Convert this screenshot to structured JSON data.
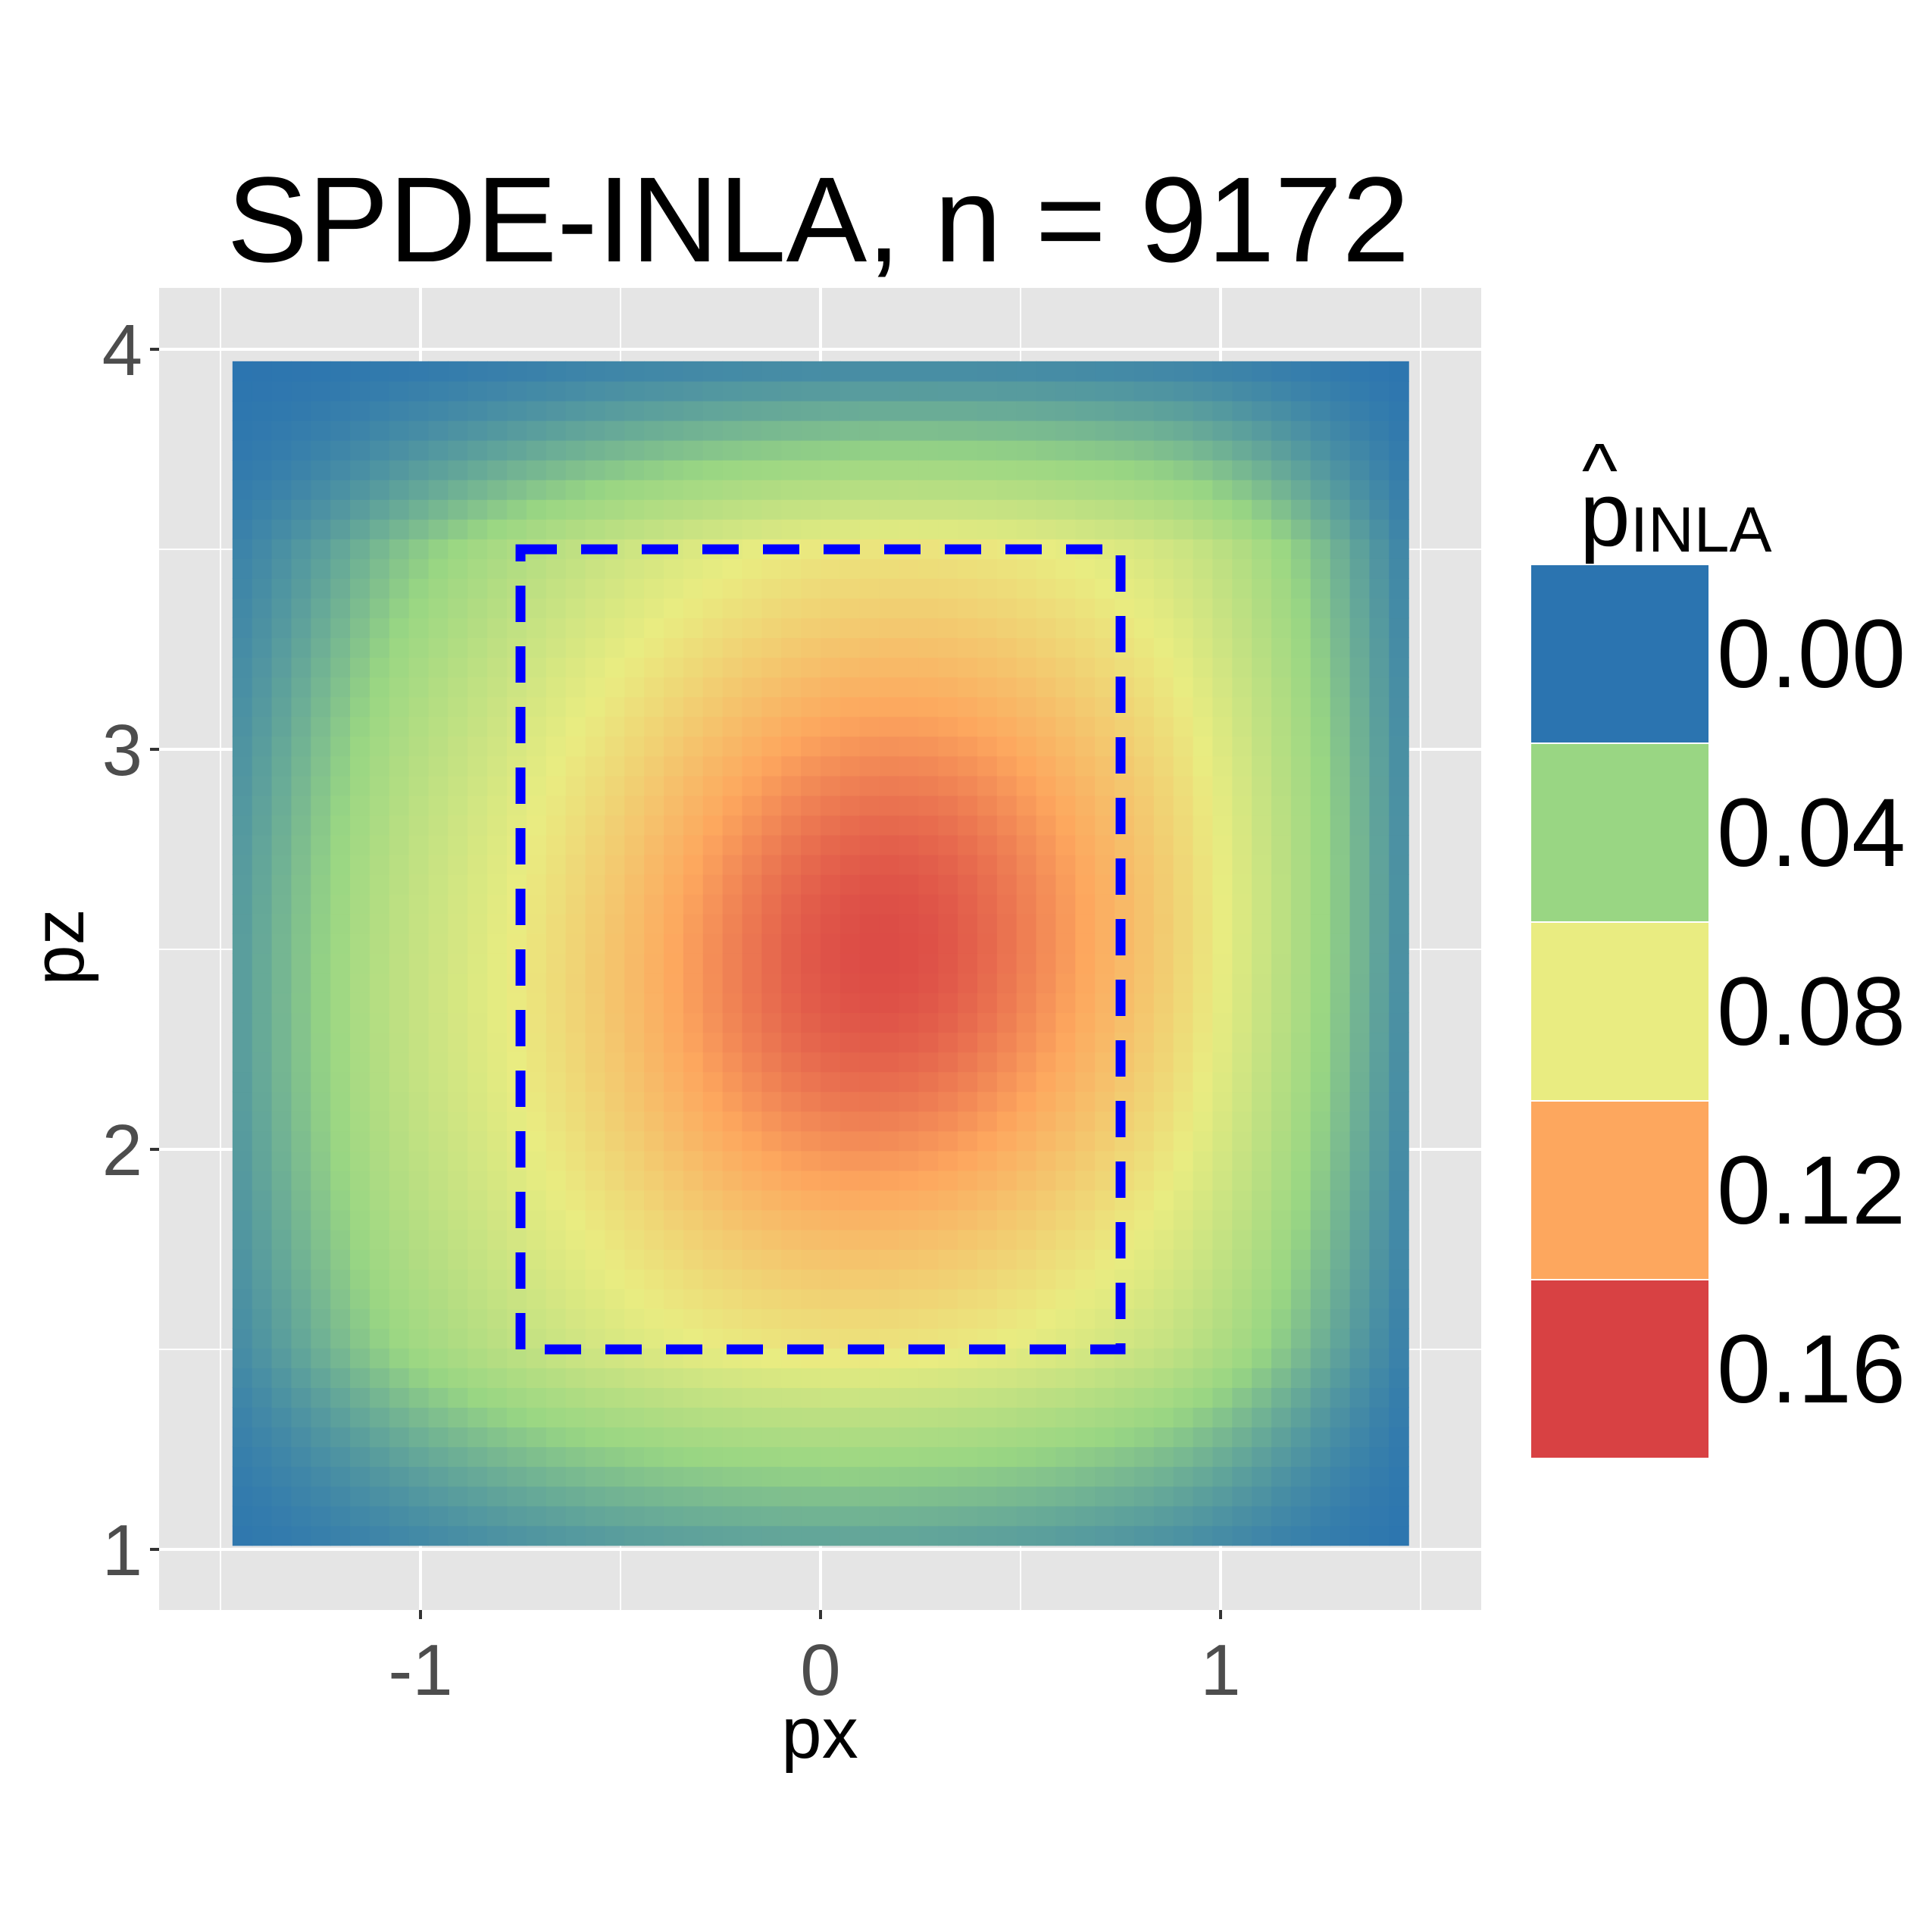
{
  "chart_data": {
    "type": "heatmap",
    "title": "SPDE-INLA, n = 9172",
    "xlabel": "px",
    "ylabel": "pz",
    "x_ticks": [
      -1,
      0,
      1
    ],
    "x_tick_labels": [
      "-1",
      "0",
      "1"
    ],
    "y_ticks": [
      1,
      2,
      3,
      4
    ],
    "y_tick_labels": [
      "1",
      "2",
      "3",
      "4"
    ],
    "xlim": [
      -1.5,
      1.5
    ],
    "ylim": [
      1,
      4
    ],
    "grid": true,
    "panel_background": "#e5e5e5",
    "field": {
      "x_range": [
        -1.47,
        1.47
      ],
      "y_range": [
        1.01,
        3.97
      ],
      "peak": {
        "px": 0.15,
        "pz": 2.5,
        "value": 0.155
      }
    },
    "annotation_box": {
      "style": "dashed",
      "color": "#0000ff",
      "px": [
        -0.75,
        0.75
      ],
      "pz": [
        1.5,
        3.5
      ]
    },
    "legend": {
      "title_main": "p",
      "title_hat": "^",
      "title_subscript": "INLA",
      "position": "right",
      "entries": [
        {
          "label": "0.00",
          "color": "#2b74b0"
        },
        {
          "label": "0.04",
          "color": "#99d683"
        },
        {
          "label": "0.08",
          "color": "#e9ec81"
        },
        {
          "label": "0.12",
          "color": "#fda75e"
        },
        {
          "label": "0.16",
          "color": "#d84143"
        }
      ]
    }
  }
}
